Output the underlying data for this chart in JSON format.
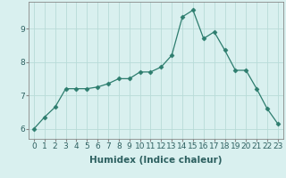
{
  "x": [
    0,
    1,
    2,
    3,
    4,
    5,
    6,
    7,
    8,
    9,
    10,
    11,
    12,
    13,
    14,
    15,
    16,
    17,
    18,
    19,
    20,
    21,
    22,
    23
  ],
  "y": [
    6.0,
    6.35,
    6.65,
    7.2,
    7.2,
    7.2,
    7.25,
    7.35,
    7.5,
    7.5,
    7.7,
    7.7,
    7.85,
    8.2,
    9.35,
    9.55,
    8.7,
    8.9,
    8.35,
    7.75,
    7.75,
    7.2,
    6.6,
    6.15
  ],
  "line_color": "#2d7d6e",
  "marker": "D",
  "marker_size": 2.5,
  "bg_color": "#d9f0ef",
  "grid_color": "#b8dbd8",
  "xlabel": "Humidex (Indice chaleur)",
  "ylim": [
    5.7,
    9.8
  ],
  "xlim": [
    -0.5,
    23.5
  ],
  "yticks": [
    6,
    7,
    8,
    9
  ],
  "xticks": [
    0,
    1,
    2,
    3,
    4,
    5,
    6,
    7,
    8,
    9,
    10,
    11,
    12,
    13,
    14,
    15,
    16,
    17,
    18,
    19,
    20,
    21,
    22,
    23
  ],
  "label_fontsize": 7.5,
  "tick_fontsize": 6.5
}
